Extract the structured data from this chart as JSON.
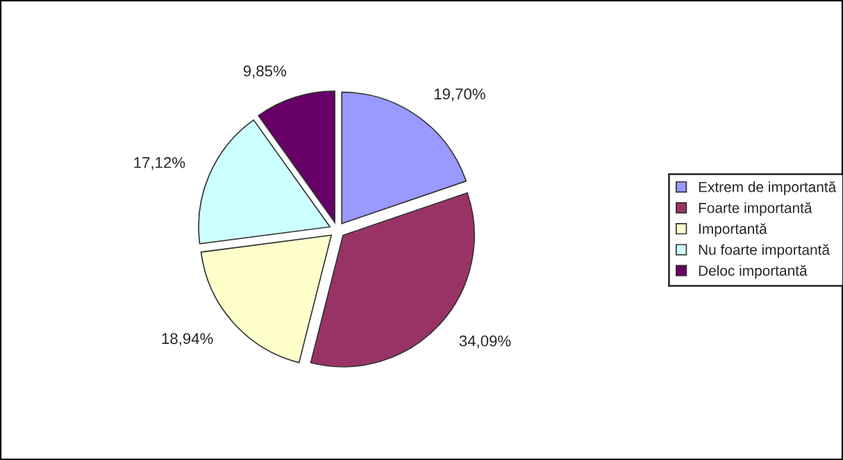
{
  "chart_data": {
    "type": "pie",
    "categories": [
      "Extrem de importantă",
      "Foarte importantă",
      "Importantă",
      "Nu foarte importantă",
      "Deloc importantă"
    ],
    "values": [
      19.7,
      34.09,
      18.94,
      17.12,
      9.85
    ],
    "value_labels": [
      "19,70%",
      "34,09%",
      "18,94%",
      "17,12%",
      "9,85%"
    ],
    "colors": [
      "#9999ff",
      "#993366",
      "#ffffcc",
      "#ccffff",
      "#660066"
    ],
    "legend": "right"
  }
}
